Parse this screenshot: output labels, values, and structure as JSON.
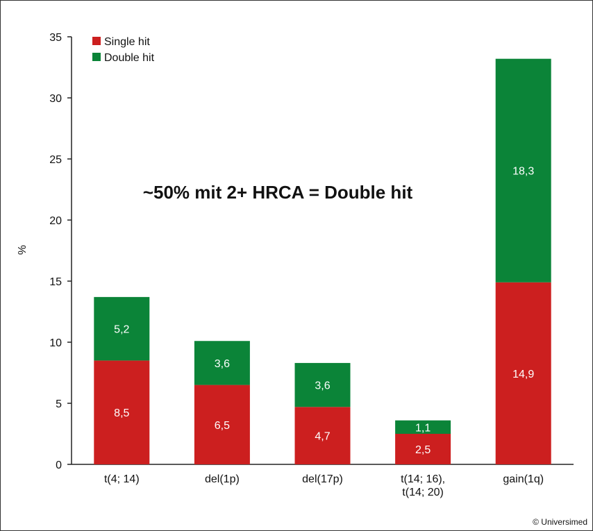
{
  "chart_data": {
    "type": "bar",
    "stacked": true,
    "categories": [
      [
        "t(4; 14)"
      ],
      [
        "del(1p)"
      ],
      [
        "del(17p)"
      ],
      [
        "t(14; 16),",
        "t(14; 20)"
      ],
      [
        "gain(1q)"
      ]
    ],
    "series": [
      {
        "name": "Single hit",
        "values": [
          8.5,
          6.5,
          4.7,
          2.5,
          14.9
        ],
        "labels": [
          "8,5",
          "6,5",
          "4,7",
          "2,5",
          "14,9"
        ],
        "color": "#cc1f1f"
      },
      {
        "name": "Double hit",
        "values": [
          5.2,
          3.6,
          3.6,
          1.1,
          18.3
        ],
        "labels": [
          "5,2",
          "3,6",
          "3,6",
          "1,1",
          "18,3"
        ],
        "color": "#0b8438"
      }
    ],
    "ylabel": "%",
    "ylim": [
      0,
      35
    ],
    "yticks": [
      0,
      5,
      10,
      15,
      20,
      25,
      30,
      35
    ],
    "grid": false,
    "legend_position": "top-left",
    "annotation": "~50% mit 2+ HRCA = Double hit"
  },
  "footer": {
    "copyright": "© Universimed"
  }
}
